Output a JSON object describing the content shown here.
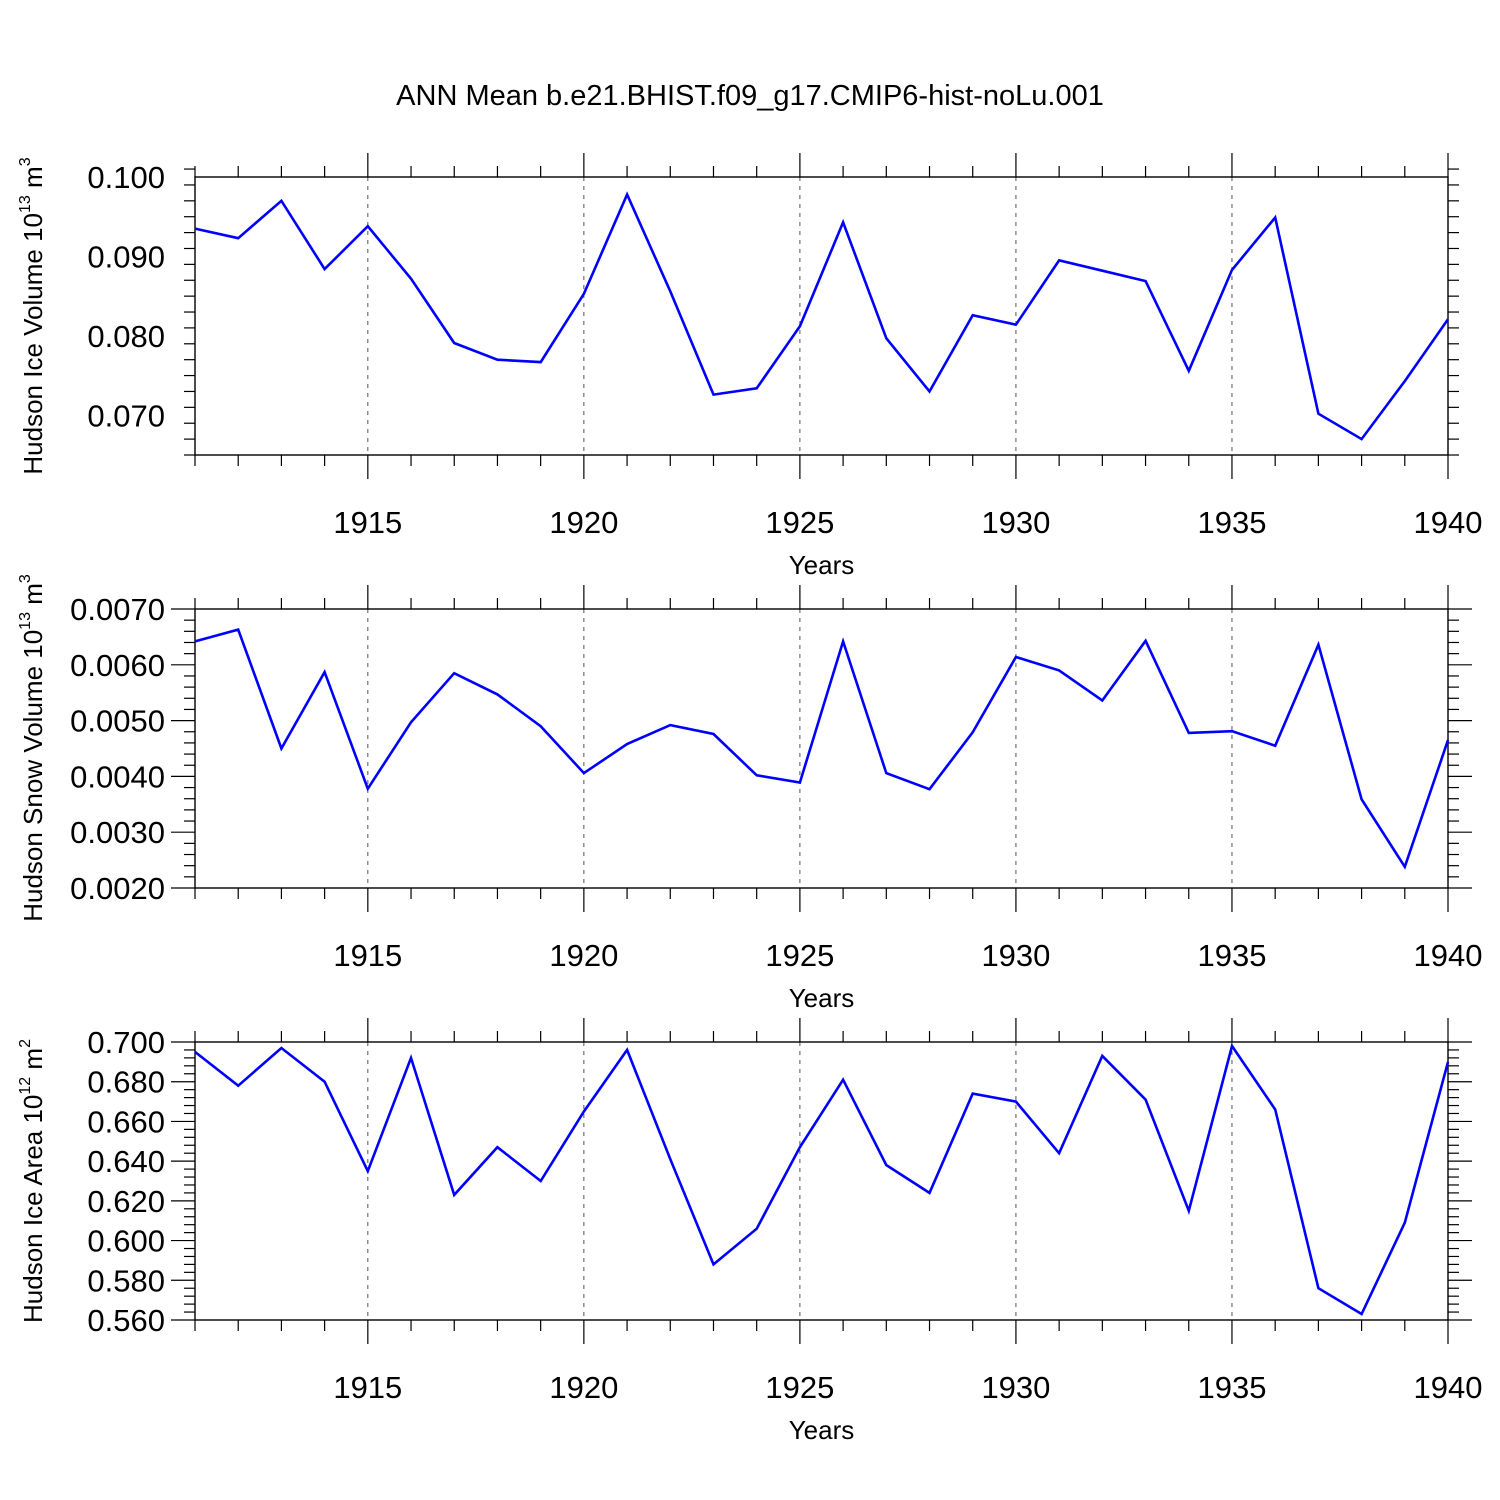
{
  "title": "ANN Mean b.e21.BHIST.f09_g17.CMIP6-hist-noLu.001",
  "line_color": "#0000ff",
  "chart_data": [
    {
      "type": "line",
      "ylabel_main": "Hudson Ice Volume 10",
      "ylabel_exp": "13",
      "ylabel_unit": "m",
      "ylabel_unit_exp": "3",
      "xlabel": "Years",
      "xlim": [
        1911,
        1940
      ],
      "ylim": [
        0.065,
        0.1
      ],
      "y_ticks": [
        0.07,
        0.08,
        0.09,
        0.1
      ],
      "y_tick_labels": [
        "0.070",
        "0.080",
        "0.090",
        "0.100"
      ],
      "x_ticks": [
        1915,
        1920,
        1925,
        1930,
        1935,
        1940
      ],
      "x_tick_labels": [
        "1915",
        "1920",
        "1925",
        "1930",
        "1935",
        "1940"
      ],
      "x": [
        1911,
        1912,
        1913,
        1914,
        1915,
        1916,
        1917,
        1918,
        1919,
        1920,
        1921,
        1922,
        1923,
        1924,
        1925,
        1926,
        1927,
        1928,
        1929,
        1930,
        1931,
        1932,
        1933,
        1934,
        1935,
        1936,
        1937,
        1938,
        1939,
        1940
      ],
      "values": [
        0.0935,
        0.0923,
        0.097,
        0.0884,
        0.0938,
        0.0872,
        0.0791,
        0.077,
        0.0767,
        0.0853,
        0.0978,
        0.0856,
        0.0726,
        0.0734,
        0.0812,
        0.0943,
        0.0797,
        0.073,
        0.0826,
        0.0814,
        0.0895,
        0.0882,
        0.0869,
        0.0756,
        0.0883,
        0.0949,
        0.0702,
        0.067,
        0.0743,
        0.0821
      ]
    },
    {
      "type": "line",
      "ylabel_main": "Hudson Snow Volume 10",
      "ylabel_exp": "13",
      "ylabel_unit": "m",
      "ylabel_unit_exp": "3",
      "xlabel": "Years",
      "xlim": [
        1911,
        1940
      ],
      "ylim": [
        0.002,
        0.007
      ],
      "y_ticks": [
        0.002,
        0.003,
        0.004,
        0.005,
        0.006,
        0.007
      ],
      "y_tick_labels": [
        "0.0020",
        "0.0030",
        "0.0040",
        "0.0050",
        "0.0060",
        "0.0070"
      ],
      "x_ticks": [
        1915,
        1920,
        1925,
        1930,
        1935,
        1940
      ],
      "x_tick_labels": [
        "1915",
        "1920",
        "1925",
        "1930",
        "1935",
        "1940"
      ],
      "x": [
        1911,
        1912,
        1913,
        1914,
        1915,
        1916,
        1917,
        1918,
        1919,
        1920,
        1921,
        1922,
        1923,
        1924,
        1925,
        1926,
        1927,
        1928,
        1929,
        1930,
        1931,
        1932,
        1933,
        1934,
        1935,
        1936,
        1937,
        1938,
        1939,
        1940
      ],
      "values": [
        0.00642,
        0.00663,
        0.0045,
        0.00587,
        0.00378,
        0.00497,
        0.00585,
        0.00547,
        0.0049,
        0.00406,
        0.00458,
        0.00492,
        0.00476,
        0.00402,
        0.00389,
        0.00642,
        0.00406,
        0.00377,
        0.00479,
        0.00614,
        0.0059,
        0.00536,
        0.00643,
        0.00478,
        0.00481,
        0.00455,
        0.00636,
        0.00359,
        0.00238,
        0.00465
      ]
    },
    {
      "type": "line",
      "ylabel_main": "Hudson Ice Area 10",
      "ylabel_exp": "12",
      "ylabel_unit": "m",
      "ylabel_unit_exp": "2",
      "xlabel": "Years",
      "xlim": [
        1911,
        1940
      ],
      "ylim": [
        0.56,
        0.7
      ],
      "y_ticks": [
        0.56,
        0.58,
        0.6,
        0.62,
        0.64,
        0.66,
        0.68,
        0.7
      ],
      "y_tick_labels": [
        "0.560",
        "0.580",
        "0.600",
        "0.620",
        "0.640",
        "0.660",
        "0.680",
        "0.700"
      ],
      "x_ticks": [
        1915,
        1920,
        1925,
        1930,
        1935,
        1940
      ],
      "x_tick_labels": [
        "1915",
        "1920",
        "1925",
        "1930",
        "1935",
        "1940"
      ],
      "x": [
        1911,
        1912,
        1913,
        1914,
        1915,
        1916,
        1917,
        1918,
        1919,
        1920,
        1921,
        1922,
        1923,
        1924,
        1925,
        1926,
        1927,
        1928,
        1929,
        1930,
        1931,
        1932,
        1933,
        1934,
        1935,
        1936,
        1937,
        1938,
        1939,
        1940
      ],
      "values": [
        0.695,
        0.678,
        0.697,
        0.68,
        0.635,
        0.692,
        0.623,
        0.647,
        0.63,
        0.665,
        0.696,
        0.641,
        0.588,
        0.606,
        0.647,
        0.681,
        0.638,
        0.624,
        0.674,
        0.67,
        0.644,
        0.693,
        0.671,
        0.615,
        0.698,
        0.666,
        0.576,
        0.563,
        0.609,
        0.69
      ]
    }
  ]
}
